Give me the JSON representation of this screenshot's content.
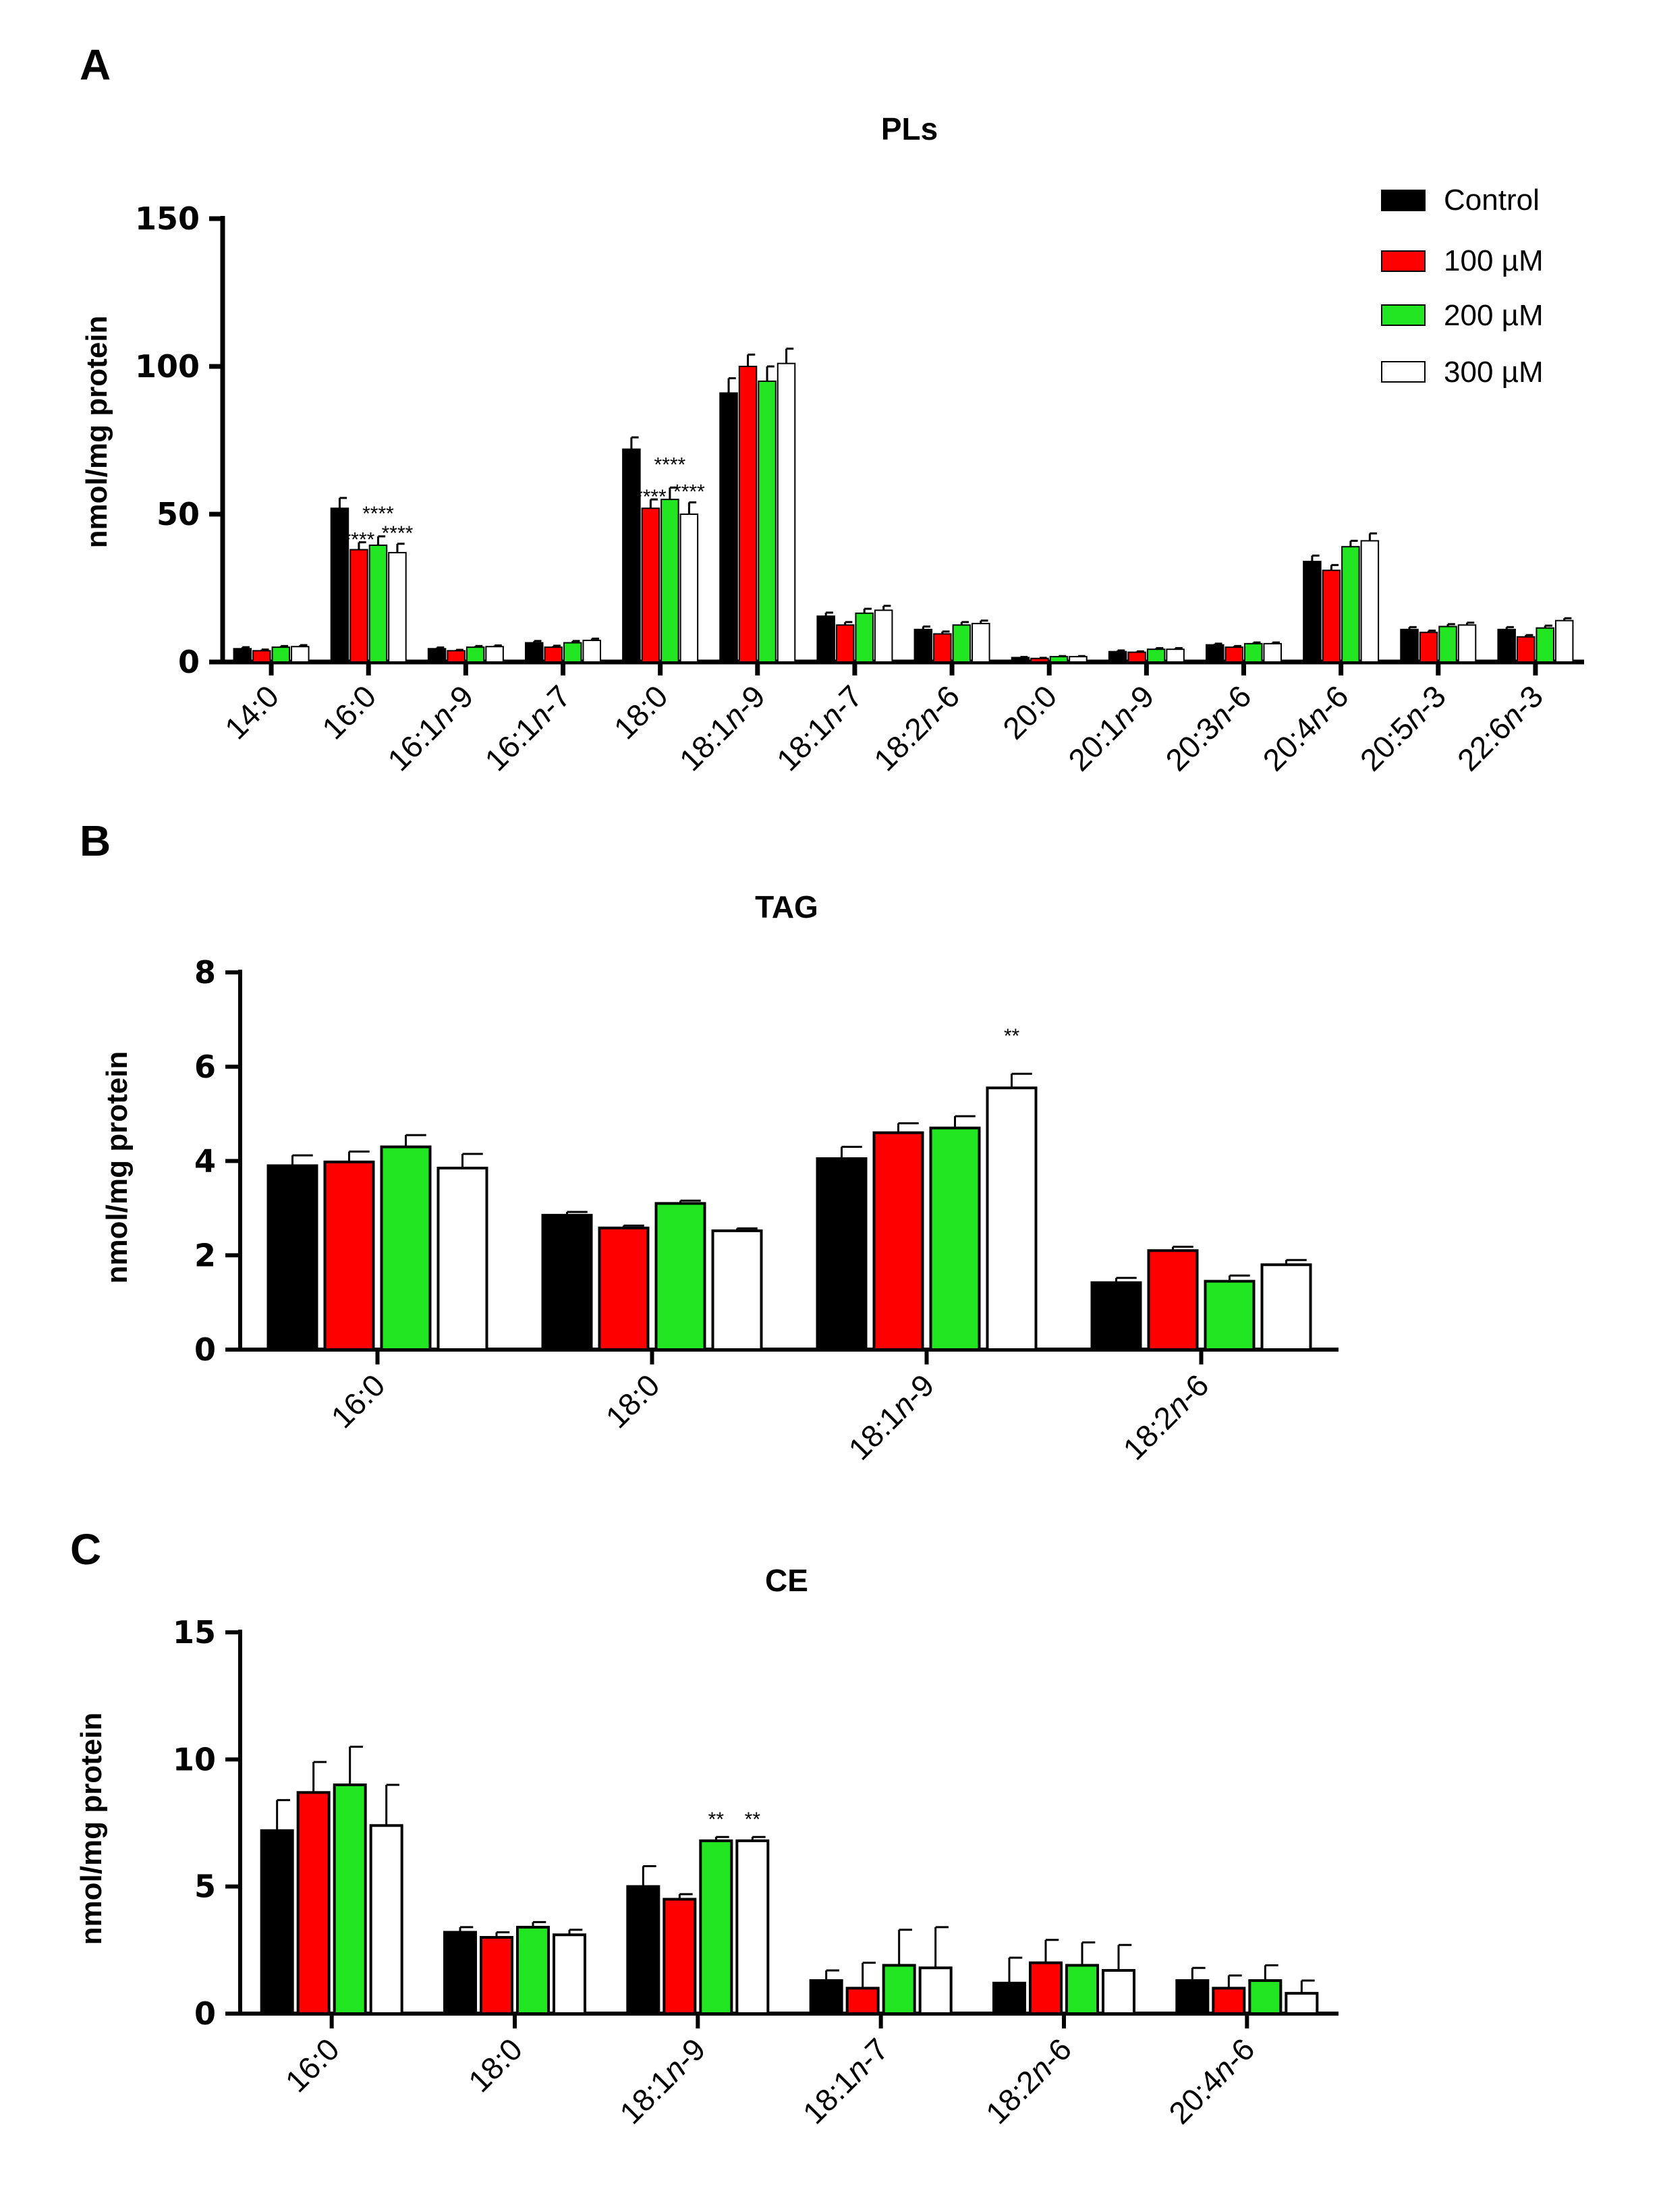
{
  "series_colors": [
    "#000000",
    "#ff0000",
    "#22e622",
    "#ffffff"
  ],
  "legend": [
    "Control",
    "100 µM",
    "200 µM",
    "300 µM"
  ],
  "chart_data": [
    {
      "panel": "A",
      "type": "bar",
      "title": "PLs",
      "ylabel": "nmol/mg protein",
      "ylim": [
        0,
        150
      ],
      "yticks": [
        "0",
        "50",
        "100",
        "150"
      ],
      "categories": [
        {
          "pre": "14:0",
          "it": "",
          "post": ""
        },
        {
          "pre": "16:0",
          "it": "",
          "post": ""
        },
        {
          "pre": "16:1",
          "it": "n",
          "post": "-9"
        },
        {
          "pre": "16:1",
          "it": "n",
          "post": "-7"
        },
        {
          "pre": "18:0",
          "it": "",
          "post": ""
        },
        {
          "pre": "18:1",
          "it": "n",
          "post": "-9"
        },
        {
          "pre": "18:1",
          "it": "n",
          "post": "-7"
        },
        {
          "pre": "18:2",
          "it": "n",
          "post": "-6"
        },
        {
          "pre": "20:0",
          "it": "",
          "post": ""
        },
        {
          "pre": "20:1",
          "it": "n",
          "post": "-9"
        },
        {
          "pre": "20:3",
          "it": "n",
          "post": "-6"
        },
        {
          "pre": "20:4",
          "it": "n",
          "post": "-6"
        },
        {
          "pre": "20:5",
          "it": "n",
          "post": "-3"
        },
        {
          "pre": "22:6",
          "it": "n",
          "post": "-3"
        }
      ],
      "series": [
        {
          "name": "Control",
          "values": [
            4.5,
            52,
            4.5,
            6.5,
            72,
            91,
            15.5,
            11,
            1.5,
            3.5,
            5.8,
            34,
            11,
            11
          ],
          "errors": [
            0.5,
            3.5,
            0.4,
            0.6,
            4,
            5,
            1.2,
            1,
            0.2,
            0.4,
            0.4,
            2,
            0.8,
            0.8
          ]
        },
        {
          "name": "100 µM",
          "values": [
            3.8,
            38,
            3.8,
            5,
            52,
            100,
            12.5,
            9.5,
            1.2,
            3.3,
            5,
            31,
            10,
            8.5
          ],
          "errors": [
            0.4,
            2.5,
            0.3,
            0.5,
            3,
            4,
            1,
            0.8,
            0.2,
            0.3,
            0.4,
            1.8,
            0.6,
            0.6
          ]
        },
        {
          "name": "200 µM",
          "values": [
            5,
            39.5,
            5,
            6.5,
            55,
            95,
            16.5,
            12.5,
            1.8,
            4.3,
            6.2,
            39,
            12,
            11.5
          ],
          "errors": [
            0.4,
            3,
            0.4,
            0.6,
            4,
            5,
            1.5,
            1,
            0.2,
            0.4,
            0.4,
            2,
            0.8,
            0.8
          ]
        },
        {
          "name": "300 µM",
          "values": [
            5.2,
            37,
            5.2,
            7.3,
            50,
            101,
            17.5,
            13,
            1.8,
            4.3,
            6.2,
            41,
            12.5,
            14
          ],
          "errors": [
            0.5,
            3,
            0.4,
            0.6,
            4,
            5,
            1.5,
            1,
            0.2,
            0.4,
            0.4,
            2.5,
            0.8,
            0.8
          ]
        }
      ],
      "annotations": [
        {
          "text": "****",
          "category": 1,
          "series": 1
        },
        {
          "text": "****",
          "category": 1,
          "series": 2
        },
        {
          "text": "****",
          "category": 1,
          "series": 3
        },
        {
          "text": "****",
          "category": 4,
          "series": 1
        },
        {
          "text": "****",
          "category": 4,
          "series": 2
        },
        {
          "text": "****",
          "category": 4,
          "series": 3
        }
      ]
    },
    {
      "panel": "B",
      "type": "bar",
      "title": "TAG",
      "ylabel": "nmol/mg protein",
      "ylim": [
        0,
        8
      ],
      "yticks": [
        "0",
        "2",
        "4",
        "6",
        "8"
      ],
      "categories": [
        {
          "pre": "16:0",
          "it": "",
          "post": ""
        },
        {
          "pre": "18:0",
          "it": "",
          "post": ""
        },
        {
          "pre": "18:1",
          "it": "n",
          "post": "-9"
        },
        {
          "pre": "18:2",
          "it": "n",
          "post": "-6"
        }
      ],
      "series": [
        {
          "name": "Control",
          "values": [
            3.9,
            2.85,
            4.05,
            1.42
          ],
          "errors": [
            0.22,
            0.07,
            0.25,
            0.1
          ]
        },
        {
          "name": "100 µM",
          "values": [
            3.98,
            2.58,
            4.6,
            2.1
          ],
          "errors": [
            0.22,
            0.05,
            0.2,
            0.08
          ]
        },
        {
          "name": "200 µM",
          "values": [
            4.3,
            3.1,
            4.7,
            1.45
          ],
          "errors": [
            0.25,
            0.06,
            0.25,
            0.12
          ]
        },
        {
          "name": "300 µM",
          "values": [
            3.85,
            2.52,
            5.55,
            1.8
          ],
          "errors": [
            0.3,
            0.05,
            0.3,
            0.1
          ]
        }
      ],
      "annotations": [
        {
          "text": "**",
          "category": 2,
          "series": 3
        }
      ]
    },
    {
      "panel": "C",
      "type": "bar",
      "title": "CE",
      "ylabel": "nmol/mg protein",
      "ylim": [
        0,
        15
      ],
      "yticks": [
        "0",
        "5",
        "10",
        "15"
      ],
      "categories": [
        {
          "pre": "16:0",
          "it": "",
          "post": ""
        },
        {
          "pre": "18:0",
          "it": "",
          "post": ""
        },
        {
          "pre": "18:1",
          "it": "n",
          "post": "-9"
        },
        {
          "pre": "18:1",
          "it": "n",
          "post": "-7"
        },
        {
          "pre": "18:2",
          "it": "n",
          "post": "-6"
        },
        {
          "pre": "20:4",
          "it": "n",
          "post": "-6"
        }
      ],
      "series": [
        {
          "name": "Control",
          "values": [
            7.2,
            3.2,
            5,
            1.3,
            1.2,
            1.3
          ],
          "errors": [
            1.2,
            0.2,
            0.8,
            0.4,
            1,
            0.5
          ]
        },
        {
          "name": "100 µM",
          "values": [
            8.7,
            3,
            4.5,
            1,
            2,
            1
          ],
          "errors": [
            1.2,
            0.2,
            0.2,
            1,
            0.9,
            0.5
          ]
        },
        {
          "name": "200 µM",
          "values": [
            9,
            3.4,
            6.8,
            1.9,
            1.9,
            1.3
          ],
          "errors": [
            1.5,
            0.2,
            0.15,
            1.4,
            0.9,
            0.6
          ]
        },
        {
          "name": "300 µM",
          "values": [
            7.4,
            3.1,
            6.8,
            1.8,
            1.7,
            0.8
          ],
          "errors": [
            1.6,
            0.2,
            0.15,
            1.6,
            1,
            0.5
          ]
        }
      ],
      "annotations": [
        {
          "text": "**",
          "category": 2,
          "series": 2
        },
        {
          "text": "**",
          "category": 2,
          "series": 3
        }
      ]
    }
  ]
}
